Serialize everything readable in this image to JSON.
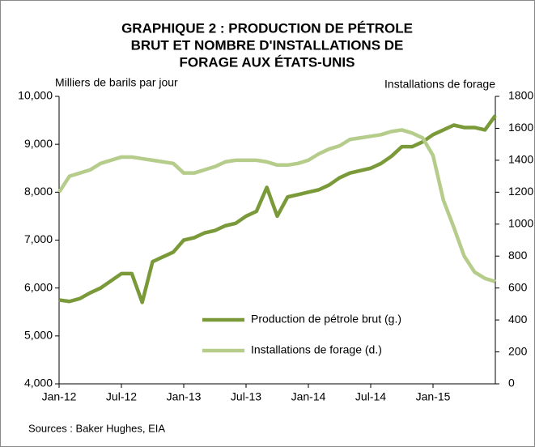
{
  "chart_data": {
    "type": "line",
    "title": [
      "GRAPHIQUE 2 : PRODUCTION DE PÉTROLE",
      "BRUT ET NOMBRE D'INSTALLATIONS DE",
      "FORAGE AUX ÉTATS-UNIS"
    ],
    "y_label": "Milliers de barils par jour",
    "y2_label": "Installations de forage",
    "source": "Sources : Baker Hughes, EIA",
    "categories": [
      "Jan-12",
      null,
      null,
      null,
      null,
      null,
      "Jul-12",
      null,
      null,
      null,
      null,
      null,
      "Jan-13",
      null,
      null,
      null,
      null,
      null,
      "Jul-13",
      null,
      null,
      null,
      null,
      null,
      "Jan-14",
      null,
      null,
      null,
      null,
      null,
      "Jul-14",
      null,
      null,
      null,
      null,
      null,
      "Jan-15",
      null,
      null,
      null,
      null,
      null,
      null
    ],
    "series": [
      {
        "name": "Production de pétrole brut (g.)",
        "color": "#7a9a3a",
        "axis": "y",
        "values": [
          5750,
          5720,
          5780,
          5900,
          6000,
          6150,
          6300,
          6300,
          5700,
          6550,
          6650,
          6750,
          7000,
          7050,
          7150,
          7200,
          7300,
          7350,
          7500,
          7600,
          8100,
          7500,
          7900,
          7950,
          8000,
          8050,
          8150,
          8300,
          8400,
          8450,
          8500,
          8600,
          8750,
          8950,
          8950,
          9050,
          9200,
          9300,
          9400,
          9350,
          9350,
          9300,
          9600
        ]
      },
      {
        "name": "Installations de forage (d.)",
        "color": "#b5cc8b",
        "axis": "y2",
        "values": [
          1200,
          1300,
          1320,
          1340,
          1380,
          1400,
          1420,
          1420,
          1410,
          1400,
          1390,
          1380,
          1320,
          1320,
          1340,
          1360,
          1390,
          1400,
          1400,
          1400,
          1390,
          1370,
          1370,
          1380,
          1400,
          1440,
          1470,
          1490,
          1530,
          1540,
          1550,
          1560,
          1580,
          1590,
          1570,
          1540,
          1430,
          1150,
          980,
          800,
          700,
          660,
          640
        ]
      }
    ],
    "ylim": [
      4000,
      10000
    ],
    "yticks": [
      {
        "value": 4000,
        "label": "4,000"
      },
      {
        "value": 5000,
        "label": "5,000"
      },
      {
        "value": 6000,
        "label": "6,000"
      },
      {
        "value": 7000,
        "label": "7,000"
      },
      {
        "value": 8000,
        "label": "8,000"
      },
      {
        "value": 9000,
        "label": "9,000"
      },
      {
        "value": 10000,
        "label": "10,000"
      }
    ],
    "y2lim": [
      0,
      1800
    ],
    "y2ticks": [
      0,
      200,
      400,
      600,
      800,
      1000,
      1200,
      1400,
      1600,
      1800
    ],
    "grid": false
  }
}
